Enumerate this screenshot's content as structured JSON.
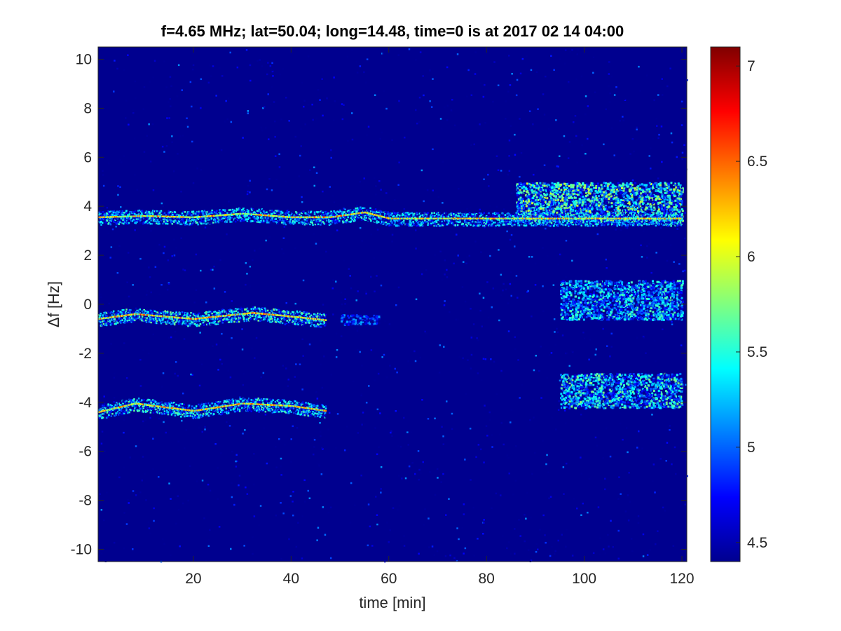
{
  "chart_data": {
    "type": "heatmap",
    "title": "f=4.65 MHz;  lat=50.04; long=14.48, time=0 is at 2017 02 14 04:00",
    "xlabel": "time [min]",
    "ylabel": "Δf [Hz]",
    "xlim": [
      0.5,
      121
    ],
    "ylim": [
      -10.5,
      10.5
    ],
    "xticks": [
      20,
      40,
      60,
      80,
      100,
      120
    ],
    "yticks": [
      10,
      8,
      6,
      4,
      2,
      0,
      -2,
      -4,
      -6,
      -8,
      -10
    ],
    "colorbar": {
      "colormap": "jet",
      "range": [
        4.4,
        7.1
      ],
      "ticks": [
        7,
        6.5,
        6,
        5.5,
        5,
        4.5
      ]
    },
    "background_level": 4.45,
    "traces": [
      {
        "name": "",
        "points": [
          [
            0.5,
            3.55
          ],
          [
            10,
            3.6
          ],
          [
            20,
            3.55
          ],
          [
            30,
            3.7
          ],
          [
            40,
            3.55
          ],
          [
            48,
            3.55
          ],
          [
            55,
            3.75
          ],
          [
            60,
            3.5
          ],
          [
            120,
            3.5
          ]
        ],
        "peak": 6.6,
        "x_range": [
          0.5,
          120
        ]
      },
      {
        "name": "",
        "points": [
          [
            0.5,
            -0.6
          ],
          [
            8,
            -0.4
          ],
          [
            20,
            -0.6
          ],
          [
            32,
            -0.35
          ],
          [
            40,
            -0.5
          ],
          [
            47,
            -0.65
          ]
        ],
        "peak": 6.8,
        "x_range": [
          0.5,
          47
        ]
      },
      {
        "name": "",
        "points": [
          [
            0.5,
            -4.4
          ],
          [
            8,
            -4.05
          ],
          [
            20,
            -4.35
          ],
          [
            30,
            -4.05
          ],
          [
            40,
            -4.15
          ],
          [
            47,
            -4.35
          ]
        ],
        "peak": 6.7,
        "x_range": [
          0.5,
          47
        ]
      }
    ],
    "diffuse_regions": [
      {
        "x_range": [
          86,
          120
        ],
        "y_range": [
          3.4,
          5.0
        ],
        "level": 5.9
      },
      {
        "x_range": [
          95,
          120
        ],
        "y_range": [
          -0.6,
          1.0
        ],
        "level": 5.6
      },
      {
        "x_range": [
          95,
          120
        ],
        "y_range": [
          -4.2,
          -2.8
        ],
        "level": 5.7
      },
      {
        "x_range": [
          50,
          58
        ],
        "y_range": [
          -0.8,
          -0.4
        ],
        "level": 5.2
      }
    ]
  }
}
